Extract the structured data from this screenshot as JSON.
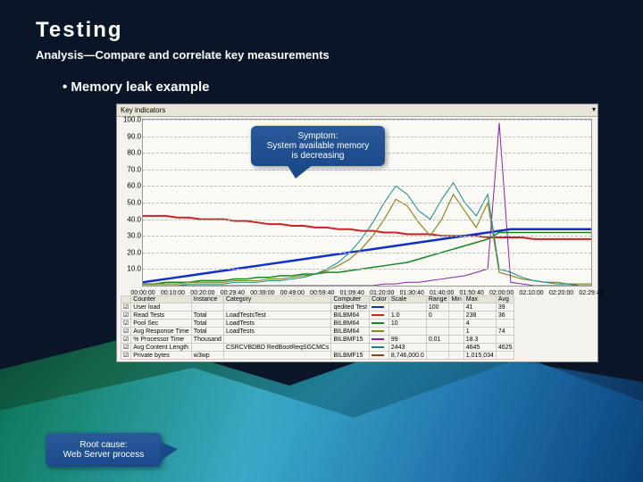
{
  "title": "Testing",
  "subtitle": "Analysis—Compare and correlate key measurements",
  "bullet": "Memory leak example",
  "panel_header": "Key indicators",
  "callouts": {
    "symptom_l1": "Symptom:",
    "symptom_l2": "System available memory",
    "symptom_l3": "is decreasing",
    "rootcause_l1": "Root cause:",
    "rootcause_l2": "Web Server process"
  },
  "chart": {
    "type": "line",
    "background_color": "#fcfaf5",
    "grid_color": "#bbbbbb",
    "ylim": [
      0,
      100
    ],
    "yticks": [
      10,
      20,
      30,
      40,
      50,
      60,
      70,
      80,
      90,
      100
    ],
    "xticks": [
      "00:00:00",
      "00:10:00",
      "00:20:00",
      "00:29:40",
      "00:39:00",
      "00:49:00",
      "00:59:40",
      "01:09:40",
      "01:20:00",
      "01:30:40",
      "01:40:00",
      "01:50:40",
      "02:00:00",
      "02:10:00",
      "02:20:00",
      "02:29:40"
    ],
    "x_count": 40,
    "series": {
      "red": {
        "color": "#cc2222",
        "width": 2,
        "y": [
          42,
          42,
          42,
          41,
          41,
          40,
          40,
          40,
          39,
          39,
          38,
          37,
          37,
          36,
          36,
          35,
          35,
          34,
          34,
          33,
          33,
          32,
          32,
          31,
          31,
          31,
          30,
          30,
          30,
          30,
          29,
          29,
          29,
          29,
          28,
          28,
          28,
          28,
          28,
          28
        ]
      },
      "blue": {
        "color": "#1030cc",
        "width": 2.5,
        "y": [
          2,
          3,
          4,
          5,
          6,
          7,
          8,
          9,
          10,
          11,
          12,
          13,
          14,
          15,
          16,
          17,
          18,
          19,
          20,
          21,
          22,
          23,
          24,
          25,
          26,
          27,
          28,
          29,
          30,
          31,
          32,
          33,
          34,
          34,
          34,
          34,
          34,
          34,
          34,
          34
        ]
      },
      "green": {
        "color": "#118822",
        "width": 1.5,
        "y": [
          1,
          1,
          2,
          2,
          2,
          3,
          3,
          3,
          4,
          4,
          5,
          5,
          6,
          6,
          7,
          7,
          8,
          8,
          9,
          10,
          11,
          12,
          13,
          14,
          16,
          18,
          20,
          22,
          24,
          26,
          28,
          32,
          32,
          32,
          32,
          32,
          32,
          32,
          32,
          32
        ]
      },
      "olive": {
        "color": "#888822",
        "width": 1.2,
        "y": [
          1,
          1,
          1,
          1,
          2,
          2,
          2,
          2,
          3,
          3,
          3,
          4,
          4,
          5,
          6,
          7,
          9,
          12,
          16,
          22,
          30,
          40,
          52,
          48,
          38,
          30,
          40,
          55,
          45,
          35,
          50,
          8,
          6,
          4,
          3,
          2,
          2,
          1,
          1,
          1
        ]
      },
      "purple": {
        "color": "#8822aa",
        "width": 1,
        "y": [
          0,
          0,
          0,
          0,
          0,
          0,
          0,
          0,
          0,
          0,
          0,
          0,
          0,
          0,
          0,
          0,
          0,
          0,
          0,
          0,
          0,
          1,
          1,
          2,
          2,
          3,
          4,
          5,
          6,
          8,
          10,
          98,
          2,
          1,
          0,
          0,
          0,
          0,
          0,
          0
        ]
      },
      "teal": {
        "color": "#118888",
        "width": 1,
        "y": [
          0,
          0,
          0,
          0,
          1,
          1,
          1,
          1,
          2,
          2,
          2,
          3,
          3,
          4,
          5,
          7,
          10,
          14,
          20,
          28,
          38,
          50,
          60,
          55,
          45,
          40,
          52,
          62,
          50,
          42,
          55,
          10,
          8,
          5,
          3,
          2,
          1,
          1,
          0,
          0
        ]
      }
    }
  },
  "legend": {
    "headers": [
      "",
      "Counter",
      "Instance",
      "Category",
      "Computer",
      "Color",
      "Scale",
      "Range",
      "Min",
      "Max",
      "Avg"
    ],
    "rows": [
      {
        "chk": "☑",
        "counter": "User load",
        "instance": "",
        "category": "",
        "computer": "qedited Test",
        "color": "#1030cc",
        "color_txt": "",
        "scale": "",
        "range": "100",
        "min": "",
        "max": "41",
        "avg": "39"
      },
      {
        "chk": "☑",
        "counter": "Read Tests",
        "instance": "Total",
        "category": "LoadTestsTest",
        "computer": "BILBM64",
        "color": "#cc2222",
        "color_txt": "",
        "scale": "1.0",
        "range": "0",
        "min": "",
        "max": "238",
        "avg": "36"
      },
      {
        "chk": "☑",
        "counter": "Pool Sec",
        "instance": "Total",
        "category": "LoadTests",
        "computer": "BILBM64",
        "color": "#118822",
        "color_txt": "",
        "scale": "10",
        "range": "",
        "min": "",
        "max": "4",
        "avg": ""
      },
      {
        "chk": "☑",
        "counter": "Avg Response Time",
        "instance": "Total",
        "category": "LoadTests",
        "computer": "BILBM64",
        "color": "#888822",
        "color_txt": "",
        "scale": "",
        "range": "",
        "min": "",
        "max": "1",
        "avg": "74"
      },
      {
        "chk": "☑",
        "counter": "% Processor Time",
        "instance": "Thousand",
        "category": "",
        "computer": "BILBMF15",
        "color": "#8822aa",
        "color_txt": "",
        "scale": "99",
        "range": "0.01",
        "min": "",
        "max": "18.3",
        "avg": ""
      },
      {
        "chk": "☑",
        "counter": "Avg Content Length",
        "instance": "",
        "category": "CSRCVBDBD RedBootReqSGCMCs",
        "computer": "",
        "color": "#118888",
        "color_txt": "",
        "scale": "2443",
        "range": "",
        "min": "",
        "max": "4645",
        "avg": "4625"
      },
      {
        "chk": "☑",
        "counter": "Private bytes",
        "instance": "w3wp",
        "category": "",
        "computer": "BILBMF15",
        "color": "#884422",
        "color_txt": "",
        "scale": "8,746,000.0",
        "range": "",
        "min": "",
        "max": "1,015,034",
        "avg": ""
      }
    ]
  },
  "colors": {
    "slide_bg": "#0a1628",
    "panel_bg": "#f5f3ed",
    "callout_bg": "#1a4a8a"
  }
}
